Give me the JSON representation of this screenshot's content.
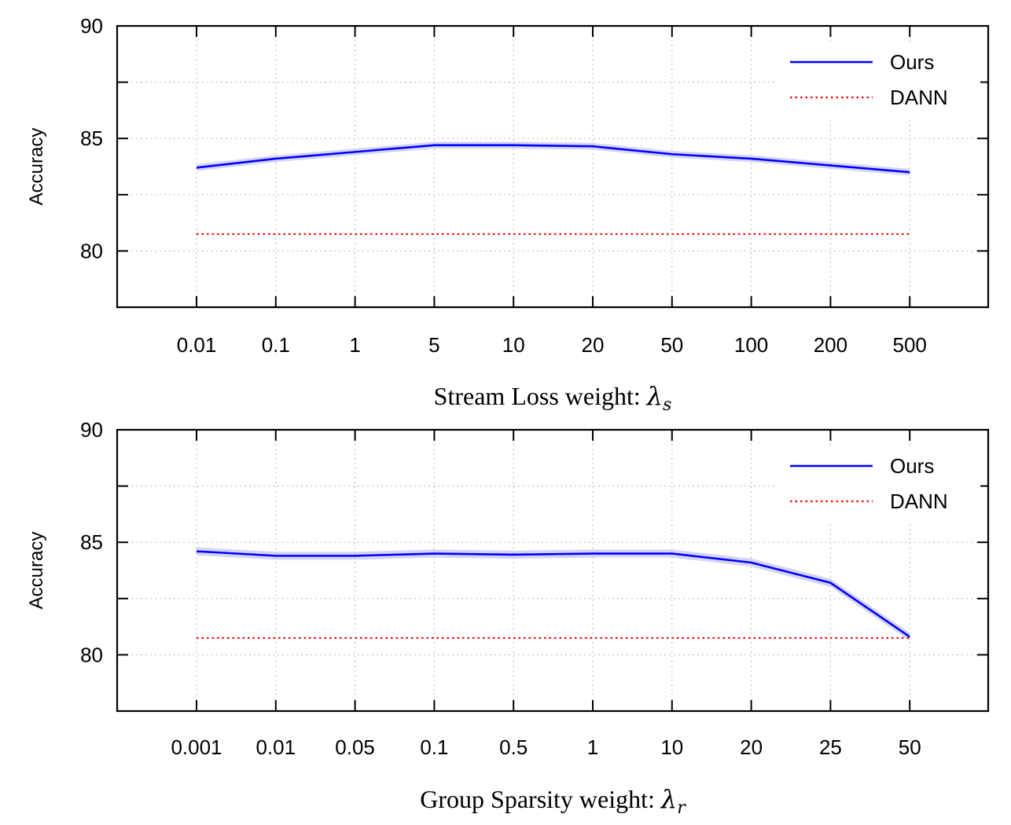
{
  "chart_data": [
    {
      "type": "line",
      "xlabel": "Stream Loss weight: ",
      "xlabel_symbol": "λ",
      "xlabel_sub": "s",
      "ylabel": "Accuracy",
      "categories": [
        "0.01",
        "0.1",
        "1",
        "5",
        "10",
        "20",
        "50",
        "100",
        "200",
        "500"
      ],
      "yticks": [
        "80",
        "85",
        "90"
      ],
      "ylim": [
        77.5,
        90
      ],
      "grid": true,
      "legend_position": "top-right",
      "series": [
        {
          "name": "Ours",
          "style": "solid",
          "color": "#0000ff",
          "values": [
            83.7,
            84.1,
            84.4,
            84.7,
            84.7,
            84.65,
            84.3,
            84.1,
            83.8,
            83.5
          ],
          "band": 0.15
        },
        {
          "name": "DANN",
          "style": "dotted",
          "color": "#ff0000",
          "values": [
            80.75,
            80.75,
            80.75,
            80.75,
            80.75,
            80.75,
            80.75,
            80.75,
            80.75,
            80.75
          ]
        }
      ]
    },
    {
      "type": "line",
      "xlabel": "Group Sparsity weight: ",
      "xlabel_symbol": "λ",
      "xlabel_sub": "r",
      "ylabel": "Accuracy",
      "categories": [
        "0.001",
        "0.01",
        "0.05",
        "0.1",
        "0.5",
        "1",
        "10",
        "20",
        "25",
        "50"
      ],
      "yticks": [
        "80",
        "85",
        "90"
      ],
      "ylim": [
        77.5,
        90
      ],
      "grid": true,
      "legend_position": "top-right",
      "series": [
        {
          "name": "Ours",
          "style": "solid",
          "color": "#0000ff",
          "values": [
            84.6,
            84.4,
            84.4,
            84.5,
            84.45,
            84.5,
            84.5,
            84.1,
            83.2,
            80.8
          ],
          "band": 0.18
        },
        {
          "name": "DANN",
          "style": "dotted",
          "color": "#ff0000",
          "values": [
            80.75,
            80.75,
            80.75,
            80.75,
            80.75,
            80.75,
            80.75,
            80.75,
            80.75,
            80.75
          ]
        }
      ]
    }
  ]
}
